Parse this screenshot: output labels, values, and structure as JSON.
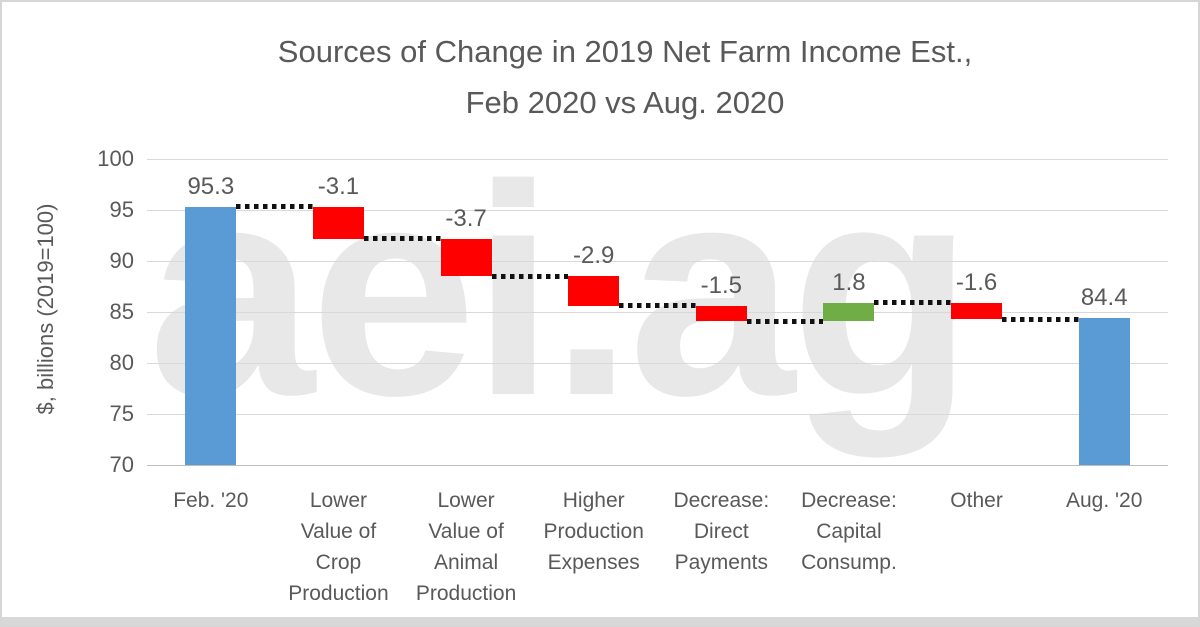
{
  "title": "Sources of Change in 2019 Net Farm Income Est.,\nFeb 2020 vs Aug. 2020",
  "watermark": {
    "text": "aei.ag",
    "color": "#e8e8e8"
  },
  "y_axis": {
    "label": "$, billions (2019=100)",
    "ticks": [
      100,
      95,
      90,
      85,
      80,
      75,
      70
    ]
  },
  "chart_data": {
    "type": "bar",
    "subtype": "waterfall",
    "title": "Sources of Change in 2019 Net Farm Income Est., Feb 2020 vs Aug. 2020",
    "xlabel": "",
    "ylabel": "$, billions (2019=100)",
    "ylim": [
      70,
      100
    ],
    "ytick_step": 5,
    "grid": true,
    "legend": "none",
    "colors": {
      "total": "#5B9BD5",
      "decrease": "#FF0000",
      "increase": "#70AD47",
      "connector": "#111111",
      "gridline": "#d9d9d9",
      "axis_line": "#bdbdbd",
      "text": "#595959"
    },
    "steps": [
      {
        "category": "Feb. '20",
        "role": "total",
        "value": 95.3,
        "display": "95.3"
      },
      {
        "category": "Lower\nValue of\nCrop\nProduction",
        "role": "delta",
        "value": -3.1,
        "display": "-3.1"
      },
      {
        "category": "Lower\nValue of\nAnimal\nProduction",
        "role": "delta",
        "value": -3.7,
        "display": "-3.7"
      },
      {
        "category": "Higher\nProduction\nExpenses",
        "role": "delta",
        "value": -2.9,
        "display": "-2.9"
      },
      {
        "category": "Decrease:\nDirect\nPayments",
        "role": "delta",
        "value": -1.5,
        "display": "-1.5"
      },
      {
        "category": "Decrease:\nCapital\nConsump.",
        "role": "delta",
        "value": 1.8,
        "display": "1.8"
      },
      {
        "category": "Other",
        "role": "delta",
        "value": -1.6,
        "display": "-1.6"
      },
      {
        "category": "Aug. '20",
        "role": "total",
        "value": 84.4,
        "display": "84.4"
      }
    ]
  }
}
